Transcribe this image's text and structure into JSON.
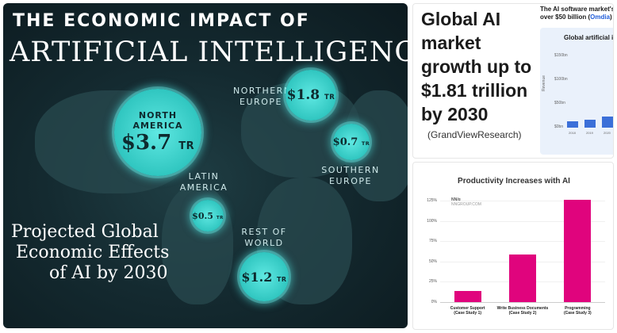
{
  "infographic": {
    "title_top": "THE ECONOMIC IMPACT OF",
    "title_main": "ARTIFICIAL INTELLIGENCE",
    "regions": [
      {
        "label_line1": "NORTH",
        "label_line2": "AMERICA",
        "value": "$3.7",
        "unit": "TR"
      },
      {
        "label_line1": "NORTHERN",
        "label_line2": "EUROPE",
        "value": "$1.8",
        "unit": "TR"
      },
      {
        "label_line1": "SOUTHERN",
        "label_line2": "EUROPE",
        "value": "$0.7",
        "unit": "TR"
      },
      {
        "label_line1": "LATIN",
        "label_line2": "AMERICA",
        "value": "$0.5",
        "unit": "TR"
      },
      {
        "label_line1": "REST OF",
        "label_line2": "WORLD",
        "value": "$1.2",
        "unit": "TR"
      }
    ],
    "projected_line1": "Projected Global",
    "projected_line2": "Economic Effects",
    "projected_line3": "of AI by 2030"
  },
  "growth_card": {
    "headline": "Global AI market growth up to $1.81 trillion by 2030",
    "source": "(GrandViewResearch)",
    "mini_header_line1": "The AI software market's g",
    "mini_header_prefix": "over $50 billion (",
    "mini_header_source": "Omdia",
    "mini_header_suffix": ")",
    "mini_chart": {
      "title": "Global artificial i",
      "y_axis_label": "Revenue",
      "y_ticks": [
        "$150bn",
        "$100bn",
        "$50bn",
        "$0bn"
      ],
      "x_labels": [
        "2018",
        "2019",
        "2020"
      ],
      "values": [
        0.12,
        0.18,
        0.3
      ]
    }
  },
  "chart_data": {
    "type": "bar",
    "title": "Productivity Increases with AI",
    "watermark_line1": "NN/g",
    "watermark_line2": "NNGROUP.COM",
    "categories": [
      [
        "Customer Support",
        "(Case Study 1)"
      ],
      [
        "Write Business Documents",
        "(Case Study 2)"
      ],
      [
        "Programming",
        "(Case Study 3)"
      ]
    ],
    "values": [
      14,
      59,
      126
    ],
    "y_ticks": [
      "125%",
      "100%",
      "75%",
      "50%",
      "25%",
      "0%"
    ],
    "ylim": [
      0,
      125
    ],
    "bar_color": "#e0047d",
    "xlabel": "",
    "ylabel": ""
  }
}
